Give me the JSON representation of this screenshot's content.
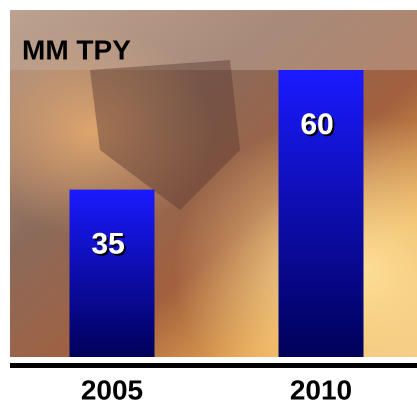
{
  "chart_data": {
    "type": "bar",
    "title": "MM TPY",
    "categories": [
      "2005",
      "2010"
    ],
    "values": [
      35,
      60
    ],
    "color": "#1a1aff"
  }
}
